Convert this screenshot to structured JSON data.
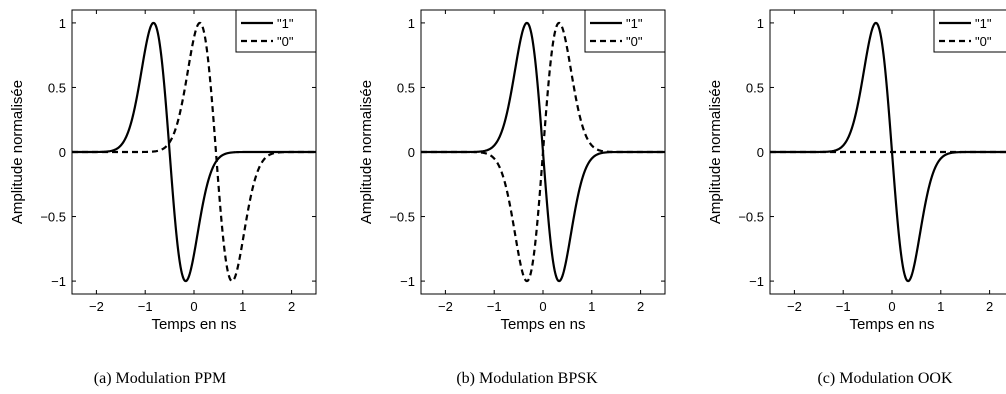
{
  "chart_data": [
    {
      "type": "line",
      "caption": "(a) Modulation PPM",
      "xlabel": "Temps en ns",
      "ylabel": "Amplitude normalisée",
      "xlim": [
        -2.5,
        2.5
      ],
      "ylim": [
        -1.1,
        1.1
      ],
      "xticks": [
        -2,
        -1,
        0,
        1,
        2
      ],
      "yticks": [
        -1,
        -0.5,
        0,
        0.5,
        1
      ],
      "xtick_labels": [
        "−2",
        "−1",
        "0",
        "1",
        "2"
      ],
      "ytick_labels": [
        "−1",
        "−0.5",
        "0",
        "0.5",
        "1"
      ],
      "grid": false,
      "legend_position": "top-right",
      "series": [
        {
          "name": "\"1\"",
          "style": "solid",
          "pulse": "monocycle",
          "center": -0.5,
          "sigma": 0.33,
          "sign": 1
        },
        {
          "name": "\"0\"",
          "style": "dashed",
          "pulse": "monocycle",
          "center": 0.45,
          "sigma": 0.33,
          "sign": 1
        }
      ]
    },
    {
      "type": "line",
      "caption": "(b) Modulation BPSK",
      "xlabel": "Temps en ns",
      "ylabel": "Amplitude normalisée",
      "xlim": [
        -2.5,
        2.5
      ],
      "ylim": [
        -1.1,
        1.1
      ],
      "xticks": [
        -2,
        -1,
        0,
        1,
        2
      ],
      "yticks": [
        -1,
        -0.5,
        0,
        0.5,
        1
      ],
      "xtick_labels": [
        "−2",
        "−1",
        "0",
        "1",
        "2"
      ],
      "ytick_labels": [
        "−1",
        "−0.5",
        "0",
        "0.5",
        "1"
      ],
      "grid": false,
      "legend_position": "top-right",
      "series": [
        {
          "name": "\"1\"",
          "style": "solid",
          "pulse": "monocycle",
          "center": 0.0,
          "sigma": 0.33,
          "sign": 1
        },
        {
          "name": "\"0\"",
          "style": "dashed",
          "pulse": "monocycle",
          "center": 0.0,
          "sigma": 0.33,
          "sign": -1
        }
      ]
    },
    {
      "type": "line",
      "caption": "(c) Modulation OOK",
      "xlabel": "Temps en ns",
      "ylabel": "Amplitude normalisée",
      "xlim": [
        -2.5,
        2.5
      ],
      "ylim": [
        -1.1,
        1.1
      ],
      "xticks": [
        -2,
        -1,
        0,
        1,
        2
      ],
      "yticks": [
        -1,
        -0.5,
        0,
        0.5,
        1
      ],
      "xtick_labels": [
        "−2",
        "−1",
        "0",
        "1",
        "2"
      ],
      "ytick_labels": [
        "−1",
        "−0.5",
        "0",
        "0.5",
        "1"
      ],
      "grid": false,
      "legend_position": "top-right",
      "series": [
        {
          "name": "\"1\"",
          "style": "solid",
          "pulse": "monocycle",
          "center": 0.0,
          "sigma": 0.33,
          "sign": 1
        },
        {
          "name": "\"0\"",
          "style": "dashed",
          "pulse": "zero"
        }
      ]
    }
  ]
}
